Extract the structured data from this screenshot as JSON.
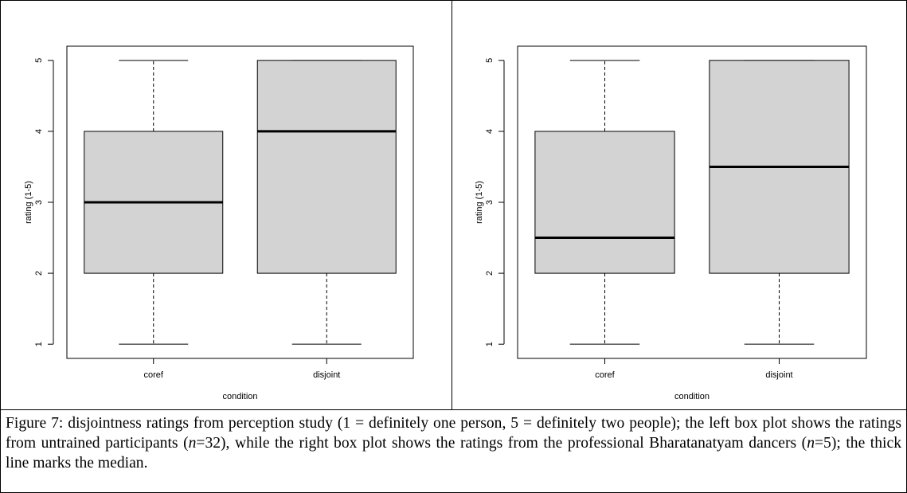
{
  "chart_data": [
    {
      "type": "box",
      "title": "",
      "xlabel": "condition",
      "ylabel": "rating (1-5)",
      "ylim": [
        0.8,
        5.2
      ],
      "yticks": [
        "1",
        "2",
        "3",
        "4",
        "5"
      ],
      "categories": [
        "coref",
        "disjoint"
      ],
      "boxes": [
        {
          "category": "coref",
          "min": 1,
          "q1": 2,
          "median": 3,
          "q3": 4,
          "max": 5
        },
        {
          "category": "disjoint",
          "min": 1,
          "q1": 2,
          "median": 4,
          "q3": 5,
          "max": 5
        }
      ],
      "box_fill": "#d3d3d3"
    },
    {
      "type": "box",
      "title": "",
      "xlabel": "condition",
      "ylabel": "rating (1-5)",
      "ylim": [
        0.8,
        5.2
      ],
      "yticks": [
        "1",
        "2",
        "3",
        "4",
        "5"
      ],
      "categories": [
        "coref",
        "disjoint"
      ],
      "boxes": [
        {
          "category": "coref",
          "min": 1,
          "q1": 2,
          "median": 2.5,
          "q3": 4,
          "max": 5
        },
        {
          "category": "disjoint",
          "min": 1,
          "q1": 2,
          "median": 3.5,
          "q3": 5,
          "max": 5
        }
      ],
      "box_fill": "#d3d3d3"
    }
  ],
  "caption": {
    "p1": "Figure 7: disjointness ratings from perception study (1 = definitely one person, 5 = definitely two people); the left box plot shows the ratings from untrained participants (",
    "n1_var": "n",
    "n1_val": "=32), while the right box plot shows the ratings from the professional Bharatanatyam dancers (",
    "n2_var": "n",
    "n2_val": "=5); the thick line marks the median."
  }
}
